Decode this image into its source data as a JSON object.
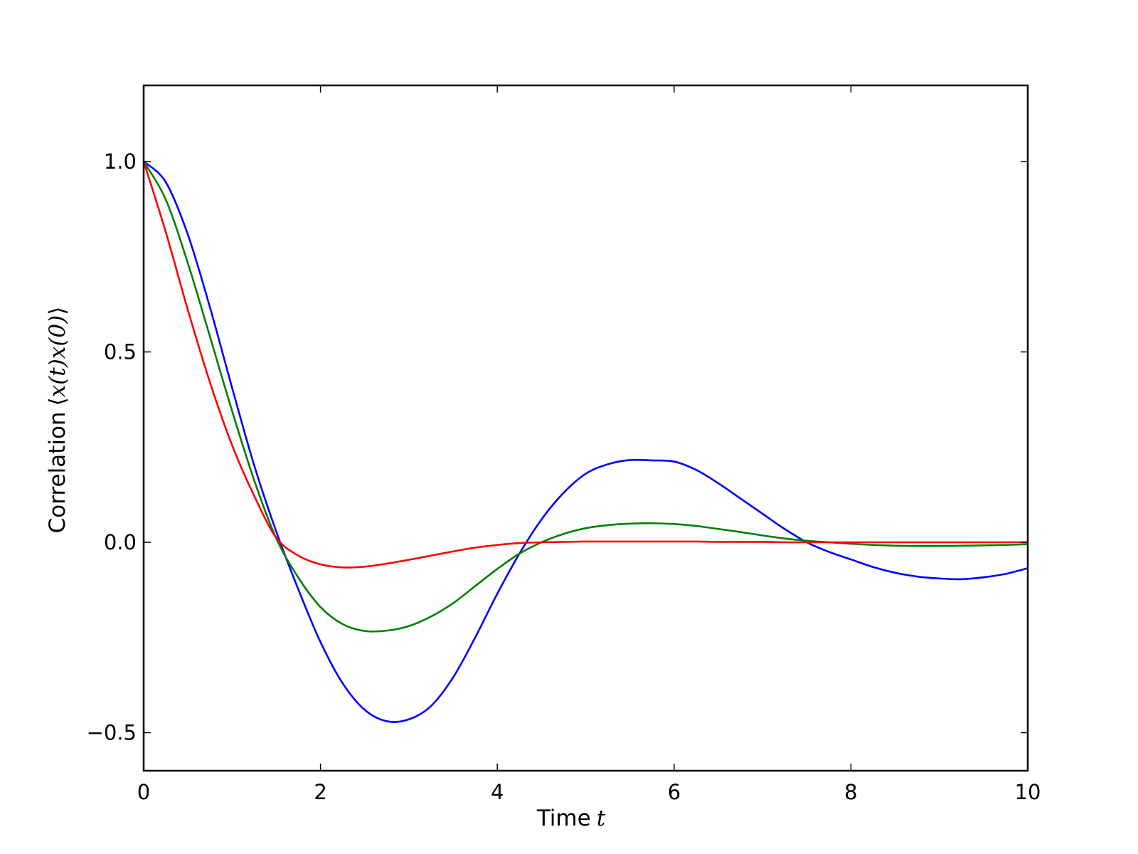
{
  "chart_data": {
    "type": "line",
    "title": "",
    "xlabel": {
      "text": "Time",
      "math": "t"
    },
    "ylabel": {
      "text": "Correlation",
      "math_open": "⟨",
      "math_body": "x(t)x(0)",
      "math_close": "⟩"
    },
    "xlim": [
      0,
      10
    ],
    "ylim": [
      -0.6,
      1.2
    ],
    "x_ticks": [
      0,
      2,
      4,
      6,
      8,
      10
    ],
    "x_tick_labels": [
      "0",
      "2",
      "4",
      "6",
      "8",
      "10"
    ],
    "y_ticks": [
      -0.5,
      0.0,
      0.5,
      1.0
    ],
    "y_tick_labels": [
      "−0.5",
      "0.0",
      "0.5",
      "1.0"
    ],
    "grid": false,
    "legend": "none",
    "series": [
      {
        "color": "#0000ff",
        "x": [
          0,
          0.25,
          0.5,
          0.75,
          1.0,
          1.25,
          1.5,
          1.75,
          2.0,
          2.25,
          2.5,
          2.75,
          3.0,
          3.25,
          3.5,
          3.75,
          4.0,
          4.25,
          4.5,
          4.75,
          5.0,
          5.25,
          5.5,
          5.75,
          6.0,
          6.25,
          6.5,
          6.75,
          7.0,
          7.25,
          7.5,
          7.75,
          8.0,
          8.25,
          8.5,
          8.75,
          9.0,
          9.25,
          9.5,
          9.75,
          10.0
        ],
        "y": [
          1.0,
          0.946,
          0.808,
          0.617,
          0.406,
          0.202,
          0.028,
          -0.124,
          -0.262,
          -0.37,
          -0.44,
          -0.47,
          -0.465,
          -0.43,
          -0.355,
          -0.25,
          -0.135,
          -0.03,
          0.06,
          0.13,
          0.18,
          0.205,
          0.216,
          0.215,
          0.212,
          0.19,
          0.155,
          0.115,
          0.075,
          0.035,
          0.0,
          -0.025,
          -0.045,
          -0.065,
          -0.08,
          -0.09,
          -0.095,
          -0.097,
          -0.092,
          -0.083,
          -0.068
        ]
      },
      {
        "color": "#008000",
        "x": [
          0,
          0.25,
          0.5,
          0.75,
          1.0,
          1.25,
          1.5,
          1.75,
          2.0,
          2.25,
          2.5,
          2.75,
          3.0,
          3.25,
          3.5,
          3.75,
          4.0,
          4.25,
          4.5,
          4.75,
          5.0,
          5.25,
          5.5,
          5.75,
          6.0,
          6.25,
          6.5,
          6.75,
          7.0,
          7.25,
          7.5,
          7.75,
          8.0,
          8.25,
          8.5,
          8.75,
          9.0,
          9.25,
          9.5,
          9.75,
          10.0
        ],
        "y": [
          1.0,
          0.9,
          0.733,
          0.54,
          0.345,
          0.163,
          0.01,
          -0.093,
          -0.17,
          -0.215,
          -0.233,
          -0.232,
          -0.22,
          -0.195,
          -0.16,
          -0.115,
          -0.07,
          -0.03,
          0.0,
          0.022,
          0.037,
          0.045,
          0.049,
          0.05,
          0.048,
          0.043,
          0.035,
          0.027,
          0.018,
          0.01,
          0.004,
          0.0,
          -0.004,
          -0.007,
          -0.009,
          -0.01,
          -0.01,
          -0.009,
          -0.008,
          -0.007,
          -0.005
        ]
      },
      {
        "color": "#ff0000",
        "x": [
          0,
          0.25,
          0.5,
          0.75,
          1.0,
          1.25,
          1.5,
          1.75,
          2.0,
          2.25,
          2.5,
          2.75,
          3.0,
          3.25,
          3.5,
          3.75,
          4.0,
          4.25,
          4.5,
          4.75,
          5.0,
          5.25,
          5.5,
          5.75,
          6.0,
          6.25,
          6.5,
          6.75,
          7.0,
          7.25,
          7.5,
          7.75,
          8.0,
          8.25,
          8.5,
          8.75,
          9.0,
          9.25,
          9.5,
          9.75,
          10.0
        ],
        "y": [
          1.0,
          0.815,
          0.61,
          0.42,
          0.255,
          0.122,
          0.012,
          -0.035,
          -0.058,
          -0.066,
          -0.064,
          -0.056,
          -0.046,
          -0.035,
          -0.024,
          -0.014,
          -0.007,
          -0.002,
          0.0,
          0.001,
          0.002,
          0.002,
          0.002,
          0.002,
          0.002,
          0.002,
          0.001,
          0.001,
          0.001,
          0.0,
          0.0,
          0.0,
          0.0,
          0.0,
          0.0,
          0.0,
          0.0,
          0.0,
          0.0,
          0.0,
          0.0
        ]
      }
    ]
  }
}
